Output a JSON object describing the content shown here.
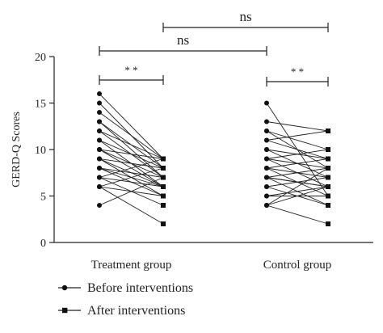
{
  "chart_data": {
    "type": "paired-dot",
    "ylabel": "GERD-Q Scores",
    "ylim": [
      0,
      20
    ],
    "yticks": [
      0,
      5,
      10,
      15,
      20
    ],
    "groups": [
      "Treatment group",
      "Control group"
    ],
    "legend": [
      {
        "label": "Before interventions",
        "marker": "circle"
      },
      {
        "label": "After interventions",
        "marker": "square"
      }
    ],
    "legend_position": "bottom-left",
    "annotations": [
      {
        "label": "* *",
        "type": "within-group",
        "group": "Treatment group"
      },
      {
        "label": "* *",
        "type": "within-group",
        "group": "Control group"
      },
      {
        "label": "ns",
        "type": "between-groups",
        "compare": "before"
      },
      {
        "label": "ns",
        "type": "between-groups",
        "compare": "after"
      }
    ],
    "series": [
      {
        "group": "Treatment group",
        "pairs": [
          [
            16,
            9
          ],
          [
            15,
            8
          ],
          [
            14,
            9
          ],
          [
            13,
            8
          ],
          [
            13,
            7
          ],
          [
            12,
            9
          ],
          [
            12,
            7
          ],
          [
            11,
            8
          ],
          [
            11,
            6
          ],
          [
            10,
            9
          ],
          [
            10,
            7
          ],
          [
            10,
            6
          ],
          [
            9,
            8
          ],
          [
            9,
            6
          ],
          [
            9,
            5
          ],
          [
            8,
            7
          ],
          [
            8,
            6
          ],
          [
            8,
            5
          ],
          [
            7,
            9
          ],
          [
            7,
            6
          ],
          [
            7,
            4
          ],
          [
            6,
            8
          ],
          [
            6,
            5
          ],
          [
            6,
            2
          ],
          [
            4,
            7
          ]
        ]
      },
      {
        "group": "Control group",
        "pairs": [
          [
            15,
            5
          ],
          [
            13,
            12
          ],
          [
            12,
            10
          ],
          [
            12,
            8
          ],
          [
            11,
            9
          ],
          [
            11,
            12
          ],
          [
            10,
            7
          ],
          [
            10,
            9
          ],
          [
            9,
            6
          ],
          [
            9,
            10
          ],
          [
            9,
            8
          ],
          [
            8,
            7
          ],
          [
            8,
            5
          ],
          [
            8,
            9
          ],
          [
            7,
            6
          ],
          [
            7,
            8
          ],
          [
            7,
            4
          ],
          [
            6,
            7
          ],
          [
            6,
            4
          ],
          [
            5,
            6
          ],
          [
            5,
            5
          ],
          [
            4,
            2
          ],
          [
            4,
            6
          ],
          [
            4,
            8
          ],
          [
            7,
            6
          ]
        ]
      }
    ]
  }
}
